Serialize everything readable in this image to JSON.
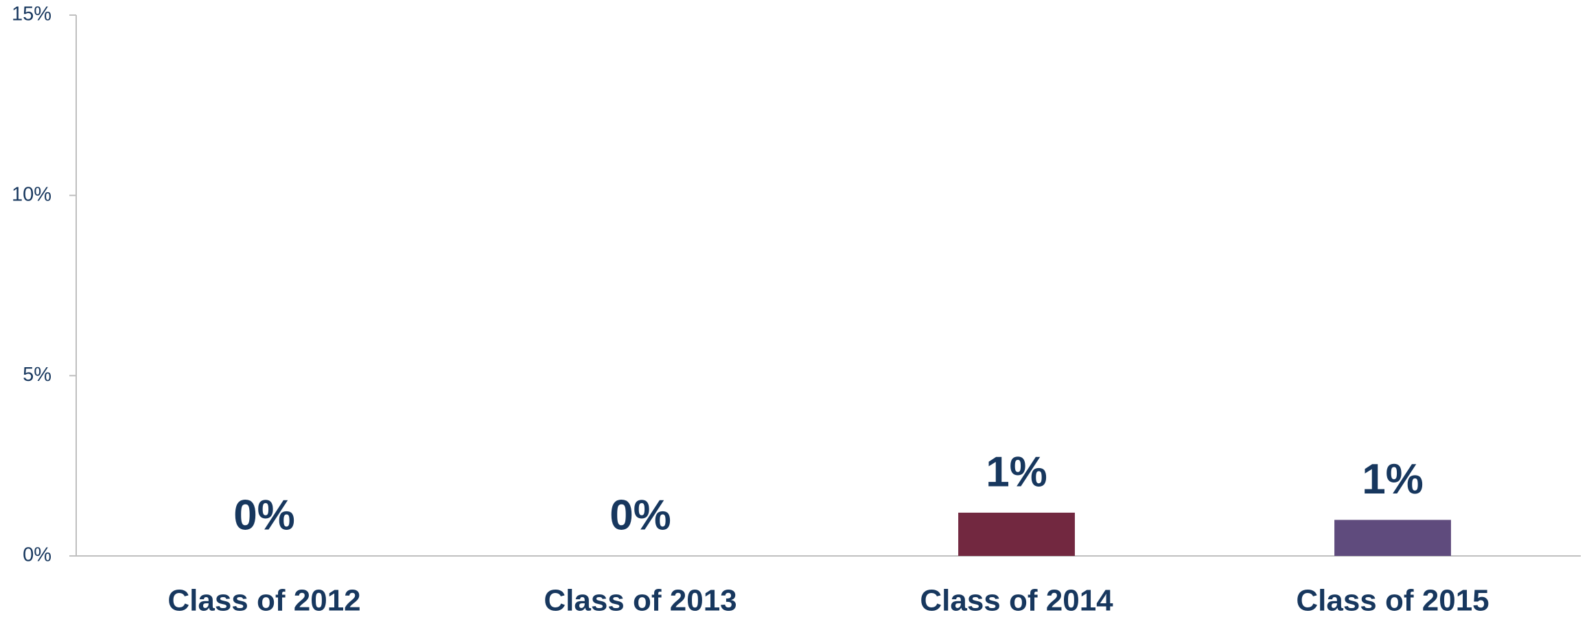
{
  "chart_data": {
    "type": "bar",
    "categories": [
      "Class of 2012",
      "Class of 2013",
      "Class of 2014",
      "Class of 2015"
    ],
    "values": [
      0,
      0,
      1.2,
      1.0
    ],
    "value_labels": [
      "0%",
      "0%",
      "1%",
      "1%"
    ],
    "colors": [
      "#17375e",
      "#1f5f8b",
      "#722840",
      "#5f4b7d"
    ],
    "ylim": [
      0,
      15
    ],
    "yticks": [
      {
        "value": 0,
        "label": "0%"
      },
      {
        "value": 5,
        "label": "5%"
      },
      {
        "value": 10,
        "label": "10%"
      },
      {
        "value": 15,
        "label": "15%"
      }
    ],
    "grid": false
  }
}
